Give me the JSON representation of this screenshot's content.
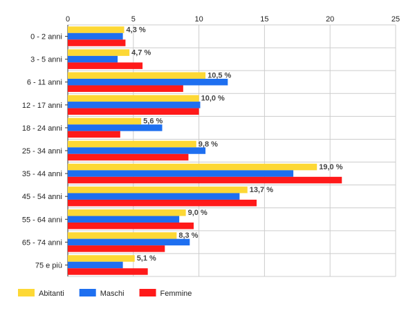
{
  "chart_data": {
    "type": "bar",
    "orientation": "horizontal",
    "categories": [
      "0 - 2 anni",
      "3 - 5 anni",
      "6 - 11 anni",
      "12 - 17 anni",
      "18 - 24 anni",
      "25 - 34 anni",
      "35 - 44 anni",
      "45 - 54 anni",
      "55 - 64 anni",
      "65 - 74 anni",
      "75 e più"
    ],
    "series": [
      {
        "name": "Abitanti",
        "color": "#fdd835",
        "values": [
          4.3,
          4.7,
          10.5,
          10.0,
          5.6,
          9.8,
          19.0,
          13.7,
          9.0,
          8.3,
          5.1
        ]
      },
      {
        "name": "Maschi",
        "color": "#1e6ff0",
        "values": [
          4.2,
          3.8,
          12.2,
          10.1,
          7.2,
          10.5,
          17.2,
          13.1,
          8.5,
          9.3,
          4.2
        ]
      },
      {
        "name": "Femmine",
        "color": "#ff1a1a",
        "values": [
          4.4,
          5.7,
          8.8,
          10.0,
          4.0,
          9.2,
          20.9,
          14.4,
          9.6,
          7.4,
          6.1
        ]
      }
    ],
    "data_labels": [
      "4,3 %",
      "4,7 %",
      "10,5 %",
      "10,0 %",
      "5,6 %",
      "9,8 %",
      "19,0 %",
      "13,7 %",
      "9,0 %",
      "8,3 %",
      "5,1 %"
    ],
    "xticks": [
      "0",
      "5",
      "10",
      "15",
      "20",
      "25"
    ],
    "xlim": [
      0,
      25
    ],
    "grid": true,
    "legend_position": "bottom-left"
  }
}
